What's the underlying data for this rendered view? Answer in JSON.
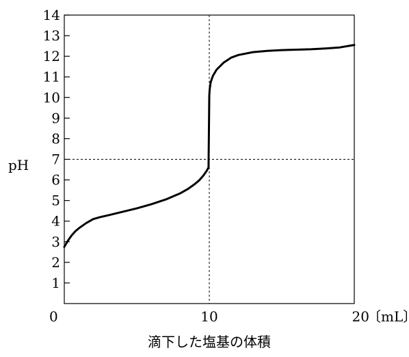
{
  "chart_data": {
    "type": "line",
    "title": "",
    "xlabel": "滴下した塩基の体積",
    "ylabel": "pH",
    "x_unit": "〔mL〕",
    "xlim": [
      0,
      20
    ],
    "ylim": [
      0,
      14
    ],
    "x_ticks": [
      0,
      10,
      20
    ],
    "y_ticks": [
      1,
      2,
      3,
      4,
      5,
      6,
      7,
      8,
      9,
      10,
      11,
      12,
      13,
      14
    ],
    "grid": false,
    "legend": "none",
    "reference_lines": [
      {
        "axis": "x",
        "value": 10,
        "style": "dashed"
      },
      {
        "axis": "y",
        "value": 7,
        "style": "dashed"
      }
    ],
    "series": [
      {
        "color": "#000000",
        "x": [
          0,
          0.25,
          0.5,
          0.75,
          1,
          1.5,
          2,
          2.5,
          3,
          4,
          5,
          6,
          7,
          8,
          8.5,
          9,
          9.3,
          9.6,
          9.8,
          9.95,
          10,
          10.03,
          10.1,
          10.25,
          10.5,
          11,
          11.5,
          12,
          13,
          14,
          15,
          16,
          17,
          18,
          19,
          20
        ],
        "y": [
          2.75,
          3.05,
          3.3,
          3.5,
          3.65,
          3.9,
          4.1,
          4.2,
          4.28,
          4.45,
          4.62,
          4.82,
          5.05,
          5.35,
          5.55,
          5.8,
          5.98,
          6.22,
          6.42,
          6.6,
          10.1,
          10.4,
          10.75,
          11.05,
          11.35,
          11.7,
          11.93,
          12.06,
          12.2,
          12.26,
          12.3,
          12.32,
          12.34,
          12.38,
          12.43,
          12.55
        ]
      }
    ]
  }
}
